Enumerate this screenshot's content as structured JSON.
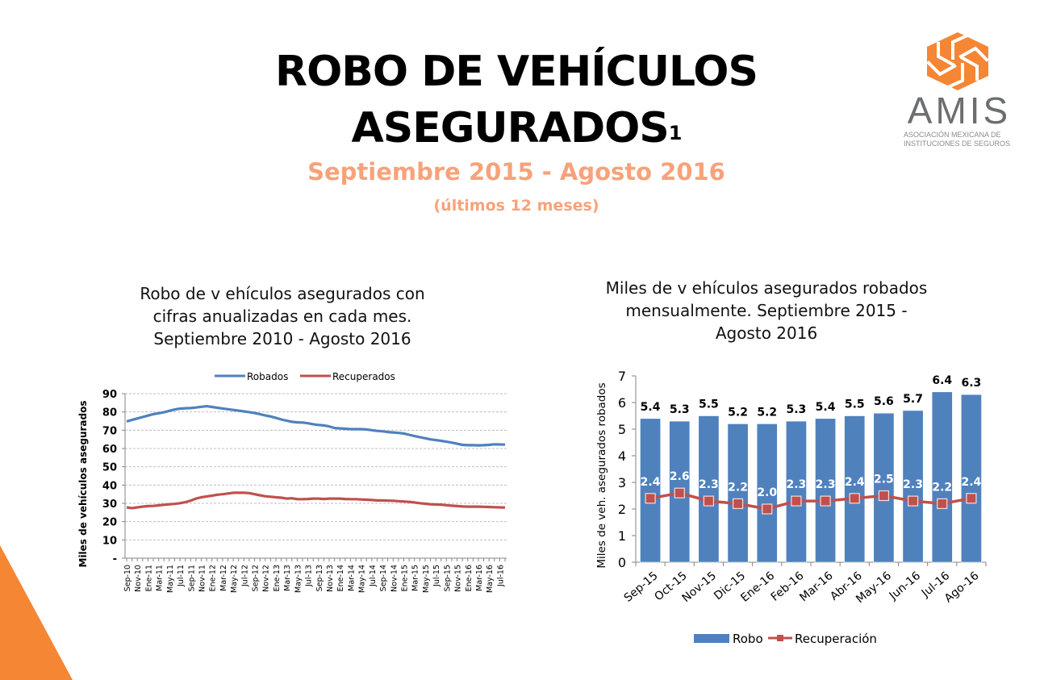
{
  "header": {
    "title_line1": "ROBO DE VEHÍCULOS",
    "title_line2": "ASEGURADOS",
    "title_footnote": "1",
    "subtitle": "Septiembre  2015 - Agosto  2016",
    "subtitle_note": "(últimos 12 meses)"
  },
  "logo": {
    "name": "AMIS",
    "subtitle_line1": "ASOCIACIÓN MEXICANA DE",
    "subtitle_line2": "INSTITUCIONES DE SEGUROS",
    "color": "#f58634"
  },
  "colors": {
    "accent_orange": "#f58634",
    "subtitle_orange": "#f7a27a",
    "series_blue": "#4f81bd",
    "series_red": "#c0504d"
  },
  "chart_data": [
    {
      "type": "line",
      "title": "Robo de vehículos asegurados con cifras anualizadas  en cada mes. Septiembre  2010 - Agosto  2016",
      "title_lines": [
        "Robo de v ehículos asegurados con",
        "cifras anualizadas  en cada mes.",
        "Septiembre  2010 - Agosto  2016"
      ],
      "xlabel": "",
      "ylabel": "Miles de vehículos asegurados",
      "ylim": [
        0,
        90
      ],
      "yticks": [
        0,
        10,
        20,
        30,
        40,
        50,
        60,
        70,
        80,
        90
      ],
      "ytick_labels": [
        "-",
        "10",
        "20",
        "30",
        "40",
        "50",
        "60",
        "70",
        "80",
        "90"
      ],
      "grid": true,
      "legend": "top",
      "x_tick_labels": [
        "Sep-10",
        "Nov-10",
        "Ene-11",
        "Mar-11",
        "May-11",
        "Jul-11",
        "Sep-11",
        "Nov-11",
        "Ene-12",
        "Mar-12",
        "May-12",
        "Jul-12",
        "Sep-12",
        "Nov-12",
        "Ene-13",
        "Mar-13",
        "May-13",
        "Jul-13",
        "Sep-13",
        "Nov-13",
        "Ene-14",
        "Mar-14",
        "May-14",
        "Jul-14",
        "Sep-14",
        "Nov-14",
        "Ene-15",
        "Mar-15",
        "May-15",
        "Jul-15",
        "Sep-15",
        "Nov-15",
        "Ene-16",
        "Mar-16",
        "May-16",
        "Jul-16"
      ],
      "x_months": 72,
      "series": [
        {
          "name": "Robados",
          "color": "#4f81bd",
          "values": [
            74.8,
            75.6,
            76.4,
            77.2,
            78.0,
            78.8,
            79.3,
            79.8,
            80.6,
            81.3,
            81.8,
            82.0,
            82.1,
            82.4,
            82.8,
            83.1,
            82.7,
            82.3,
            81.9,
            81.5,
            81.1,
            80.7,
            80.3,
            79.9,
            79.4,
            78.8,
            78.1,
            77.5,
            76.7,
            75.9,
            75.2,
            74.6,
            74.3,
            74.2,
            73.8,
            73.3,
            72.9,
            72.6,
            72.1,
            71.2,
            71.0,
            70.8,
            70.6,
            70.6,
            70.6,
            70.4,
            70.0,
            69.6,
            69.4,
            69.0,
            68.8,
            68.5,
            68.2,
            67.5,
            66.8,
            66.2,
            65.6,
            65.0,
            64.6,
            64.2,
            63.7,
            63.2,
            62.6,
            62.0,
            61.8,
            61.8,
            61.7,
            61.8,
            62.0,
            62.3,
            62.2,
            62.1
          ]
        },
        {
          "name": "Recuperados",
          "color": "#c0504d",
          "values": [
            27.8,
            27.4,
            27.8,
            28.2,
            28.5,
            28.6,
            28.9,
            29.2,
            29.5,
            29.7,
            30.1,
            30.6,
            31.5,
            32.6,
            33.3,
            33.8,
            34.2,
            34.7,
            35.0,
            35.4,
            35.8,
            35.8,
            35.8,
            35.6,
            35.0,
            34.4,
            33.9,
            33.6,
            33.3,
            33.1,
            32.6,
            32.8,
            32.3,
            32.3,
            32.4,
            32.6,
            32.6,
            32.4,
            32.6,
            32.6,
            32.6,
            32.4,
            32.3,
            32.3,
            32.1,
            32.0,
            31.8,
            31.6,
            31.6,
            31.5,
            31.4,
            31.2,
            31.0,
            30.8,
            30.5,
            30.1,
            29.8,
            29.5,
            29.4,
            29.3,
            29.0,
            28.7,
            28.5,
            28.3,
            28.2,
            28.2,
            28.2,
            28.1,
            28.0,
            27.9,
            27.8,
            27.7
          ]
        }
      ]
    },
    {
      "type": "bar",
      "title": "Miles de vehículos asegurados robados mensualmente. Septiembre  2015 - Agosto  2016",
      "title_lines": [
        "Miles de v ehículos asegurados robados",
        "mensualmente. Septiembre  2015 -",
        "Agosto  2016"
      ],
      "xlabel": "",
      "ylabel": "Miles de veh. asegurados robados",
      "ylim": [
        0,
        7
      ],
      "yticks": [
        0,
        1,
        2,
        3,
        4,
        5,
        6,
        7
      ],
      "grid": false,
      "legend": "bottom",
      "categories": [
        "Sep-15",
        "Oct-15",
        "Nov-15",
        "Dic-15",
        "Ene-16",
        "Feb-16",
        "Mar-16",
        "Abr-16",
        "May-16",
        "Jun-16",
        "Jul-16",
        "Ago-16"
      ],
      "series": [
        {
          "name": "Robo",
          "type": "bar",
          "color": "#4f81bd",
          "values": [
            5.4,
            5.3,
            5.5,
            5.2,
            5.2,
            5.3,
            5.4,
            5.5,
            5.6,
            5.7,
            6.4,
            6.3
          ]
        },
        {
          "name": "Recuperación",
          "type": "line",
          "color": "#c0504d",
          "values": [
            2.4,
            2.6,
            2.3,
            2.2,
            2.0,
            2.3,
            2.3,
            2.4,
            2.5,
            2.3,
            2.2,
            2.4
          ]
        }
      ],
      "data_labels": {
        "Robo": [
          "5.4",
          "5.3",
          "5.5",
          "5.2",
          "5.2",
          "5.3",
          "5.4",
          "5.5",
          "5.6",
          "5.7",
          "6.4",
          "6.3"
        ],
        "Recuperación": [
          "2.4",
          "2.6",
          "2.3",
          "2.2",
          "2.0",
          "2.3",
          "2.3",
          "2.4",
          "2.5",
          "2.3",
          "2.2",
          "2.4"
        ]
      }
    }
  ]
}
